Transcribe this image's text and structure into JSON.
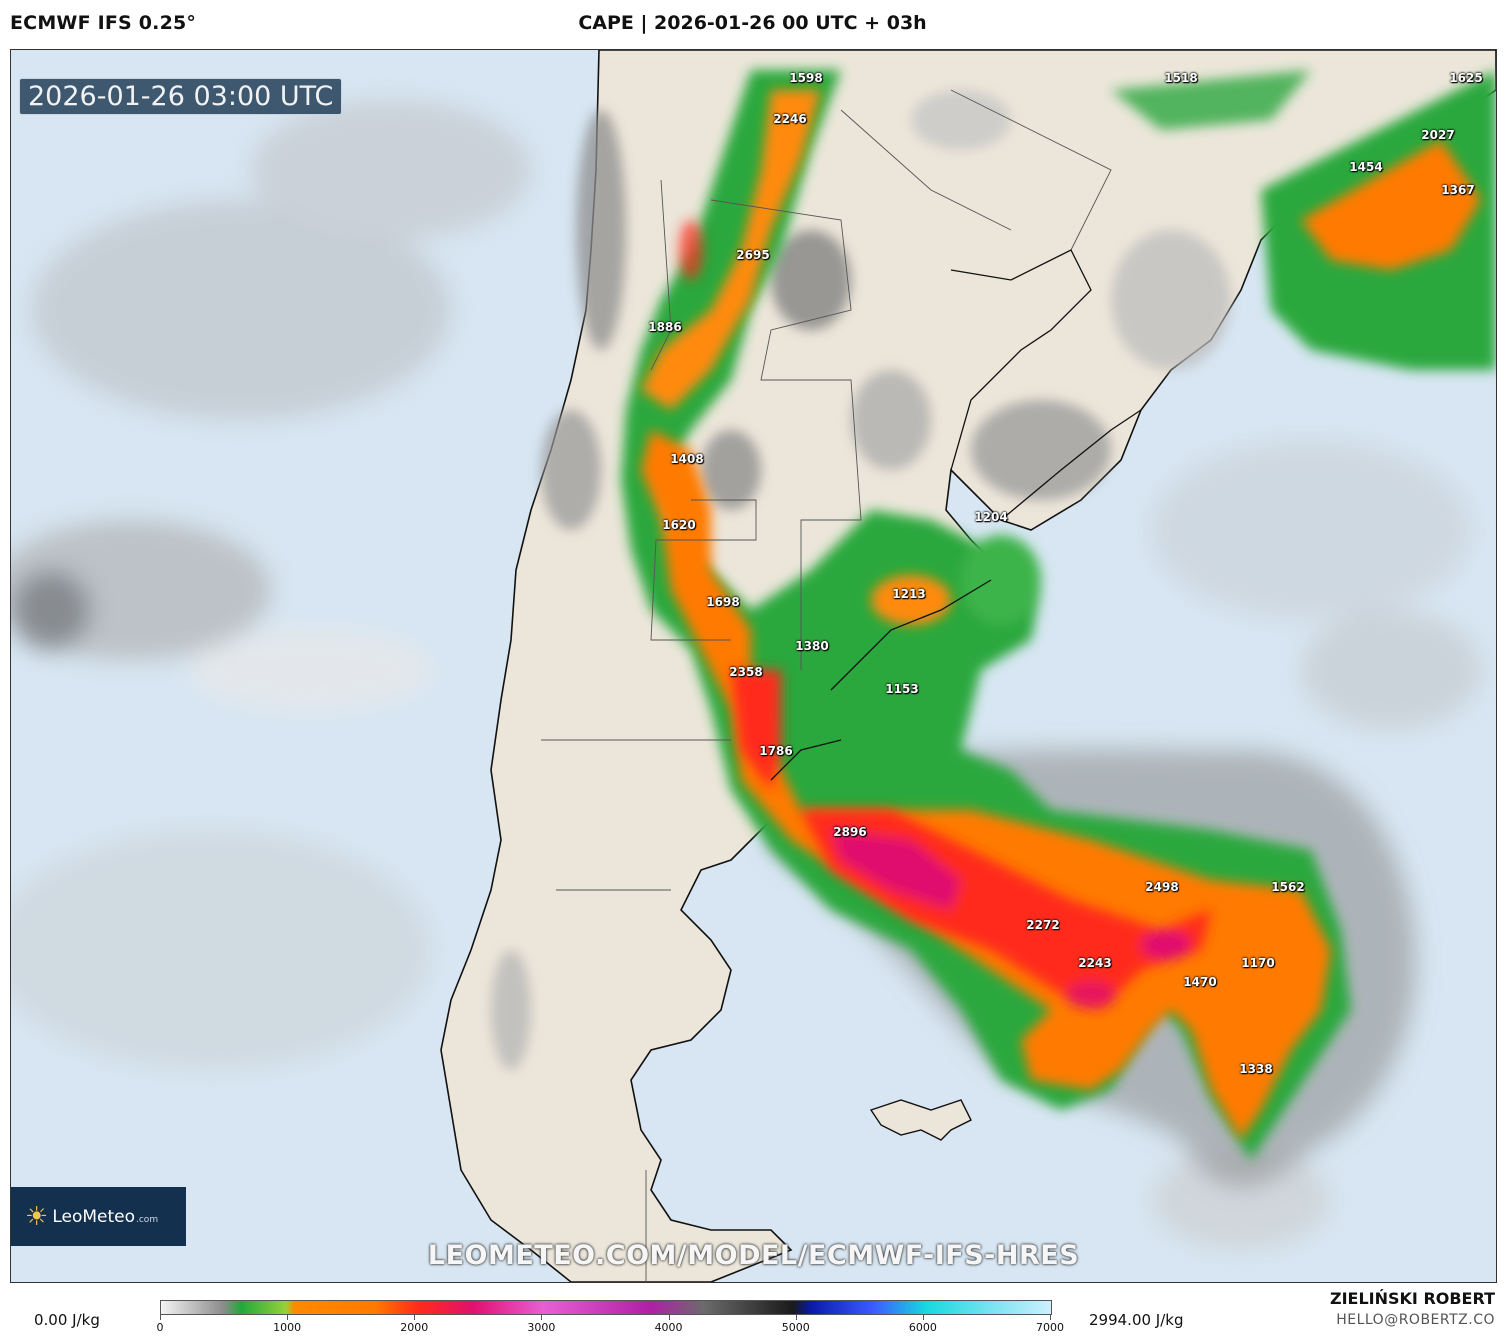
{
  "header": {
    "model": "ECMWF IFS 0.25°",
    "title": "CAPE | 2026-01-26 00 UTC + 03h"
  },
  "map": {
    "timestamp": "2026-01-26 03:00 UTC",
    "logo_text": "LeoMeteo",
    "logo_suffix": ".com",
    "watermark": "LEOMETEO.COM/MODEL/ECMWF-IFS-HRES",
    "cape_values": [
      {
        "value": "1598"
      },
      {
        "value": "1518"
      },
      {
        "value": "1625"
      },
      {
        "value": "2246"
      },
      {
        "value": "2027"
      },
      {
        "value": "1454"
      },
      {
        "value": "1367"
      },
      {
        "value": "2695"
      },
      {
        "value": "1886"
      },
      {
        "value": "1408"
      },
      {
        "value": "1620"
      },
      {
        "value": "1204"
      },
      {
        "value": "1698"
      },
      {
        "value": "1213"
      },
      {
        "value": "1380"
      },
      {
        "value": "2358"
      },
      {
        "value": "1153"
      },
      {
        "value": "1786"
      },
      {
        "value": "2896"
      },
      {
        "value": "2498"
      },
      {
        "value": "1562"
      },
      {
        "value": "2272"
      },
      {
        "value": "2243"
      },
      {
        "value": "1170"
      },
      {
        "value": "1470"
      },
      {
        "value": "1338"
      }
    ]
  },
  "legend": {
    "min_label": "0.00 J/kg",
    "max_label": "2994.00 J/kg",
    "ticks": [
      "0",
      "1000",
      "2000",
      "3000",
      "4000",
      "5000",
      "6000",
      "7000"
    ],
    "scale_max": 7000
  },
  "credits": {
    "author": "ZIELIŃSKI ROBERT",
    "email": "HELLO@ROBERTZ.CO"
  },
  "colors": {
    "ocean": "#d7e6f2",
    "land": "#ece6da",
    "low_cape": "#22a83a",
    "mid_cape": "#ff7a00",
    "high_cape": "#ff2a1a",
    "peak_cape": "#e0106e"
  }
}
